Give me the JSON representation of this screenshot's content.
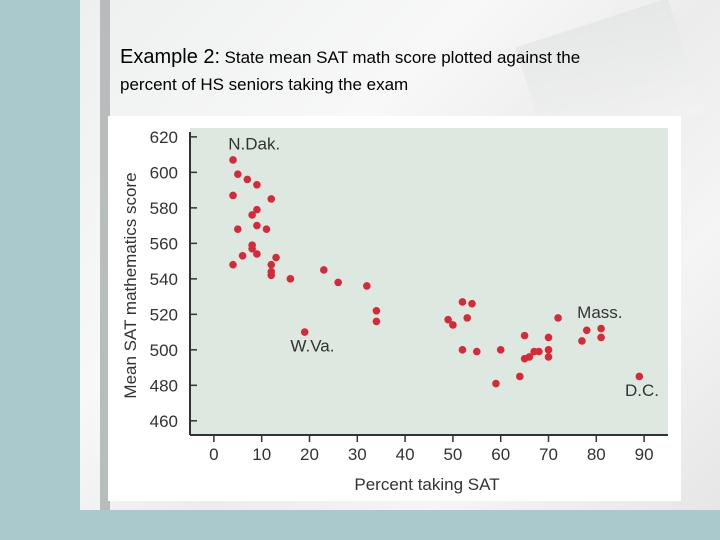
{
  "slide": {
    "title_lead": "Example 2:",
    "title_rest": "State mean SAT math score plotted against the",
    "title_line2": "percent of HS seniors taking the exam"
  },
  "colors": {
    "plot_bg": "#dde9e0",
    "point": "#d62a38",
    "axis": "#333333"
  },
  "chart_data": {
    "type": "scatter",
    "title": "",
    "xlabel": "Percent taking SAT",
    "ylabel": "Mean SAT mathematics score",
    "xlim": [
      -5,
      95
    ],
    "ylim": [
      452,
      625
    ],
    "xticks": [
      0,
      10,
      20,
      30,
      40,
      50,
      60,
      70,
      80,
      90
    ],
    "yticks": [
      460,
      480,
      500,
      520,
      540,
      560,
      580,
      600,
      620
    ],
    "grid": false,
    "points": [
      {
        "x": 4,
        "y": 607
      },
      {
        "x": 5,
        "y": 599
      },
      {
        "x": 7,
        "y": 596
      },
      {
        "x": 9,
        "y": 593
      },
      {
        "x": 4,
        "y": 587
      },
      {
        "x": 12,
        "y": 585
      },
      {
        "x": 9,
        "y": 579
      },
      {
        "x": 8,
        "y": 576
      },
      {
        "x": 9,
        "y": 570
      },
      {
        "x": 5,
        "y": 568
      },
      {
        "x": 11,
        "y": 568
      },
      {
        "x": 8,
        "y": 559
      },
      {
        "x": 8,
        "y": 557
      },
      {
        "x": 9,
        "y": 554
      },
      {
        "x": 6,
        "y": 553
      },
      {
        "x": 13,
        "y": 552
      },
      {
        "x": 4,
        "y": 548
      },
      {
        "x": 12,
        "y": 548
      },
      {
        "x": 12,
        "y": 544
      },
      {
        "x": 12,
        "y": 542
      },
      {
        "x": 23,
        "y": 545
      },
      {
        "x": 16,
        "y": 540
      },
      {
        "x": 26,
        "y": 538
      },
      {
        "x": 32,
        "y": 536
      },
      {
        "x": 34,
        "y": 522
      },
      {
        "x": 34,
        "y": 516
      },
      {
        "x": 19,
        "y": 510
      },
      {
        "x": 49,
        "y": 517
      },
      {
        "x": 50,
        "y": 514
      },
      {
        "x": 52,
        "y": 527
      },
      {
        "x": 54,
        "y": 526
      },
      {
        "x": 53,
        "y": 518
      },
      {
        "x": 52,
        "y": 500
      },
      {
        "x": 55,
        "y": 499
      },
      {
        "x": 60,
        "y": 500
      },
      {
        "x": 59,
        "y": 481
      },
      {
        "x": 64,
        "y": 485
      },
      {
        "x": 65,
        "y": 508
      },
      {
        "x": 65,
        "y": 495
      },
      {
        "x": 66,
        "y": 496
      },
      {
        "x": 67,
        "y": 499
      },
      {
        "x": 68,
        "y": 499
      },
      {
        "x": 70,
        "y": 507
      },
      {
        "x": 70,
        "y": 500
      },
      {
        "x": 70,
        "y": 496
      },
      {
        "x": 72,
        "y": 518
      },
      {
        "x": 77,
        "y": 505
      },
      {
        "x": 78,
        "y": 511
      },
      {
        "x": 81,
        "y": 512
      },
      {
        "x": 81,
        "y": 507
      },
      {
        "x": 89,
        "y": 485
      }
    ],
    "annotations": [
      {
        "text": "N.Dak.",
        "x": 3,
        "y": 613
      },
      {
        "text": "W.Va.",
        "x": 16,
        "y": 499
      },
      {
        "text": "Mass.",
        "x": 76,
        "y": 518
      },
      {
        "text": "D.C.",
        "x": 86,
        "y": 474
      }
    ]
  }
}
